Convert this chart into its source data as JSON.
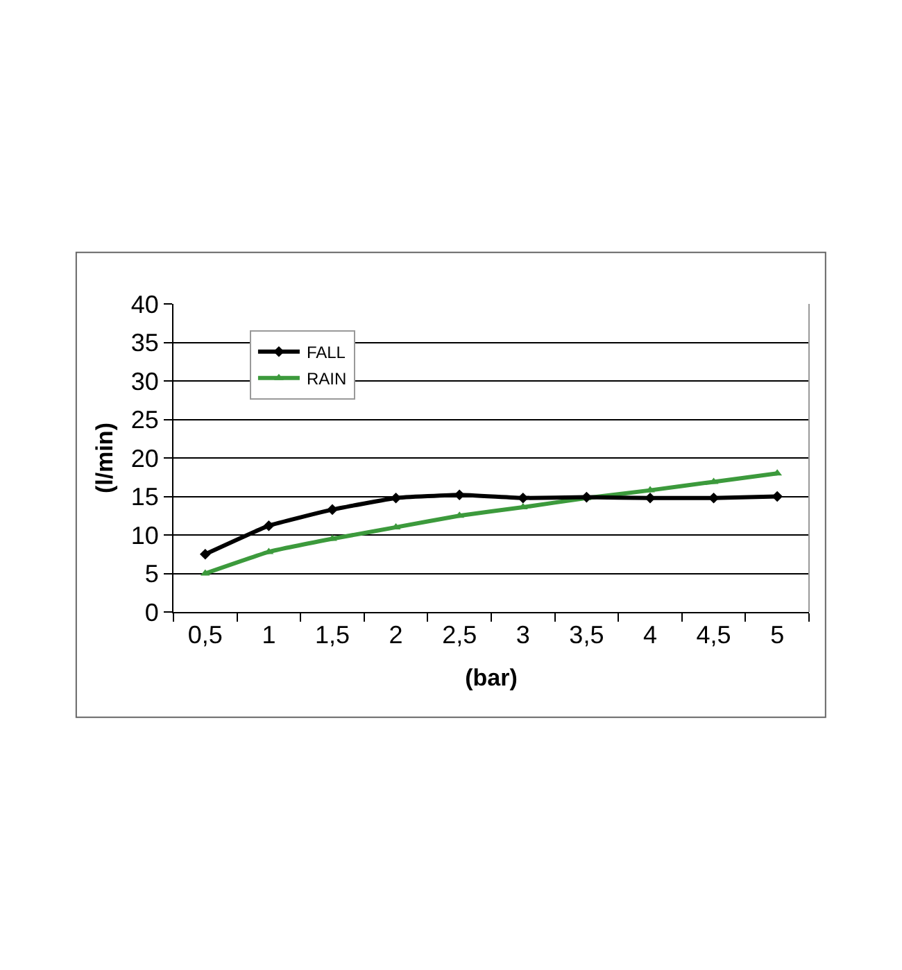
{
  "chart_data": {
    "type": "line",
    "xlabel": "(bar)",
    "ylabel": "(l/min)",
    "categories": [
      "0,5",
      "1",
      "1,5",
      "2",
      "2,5",
      "3",
      "3,5",
      "4",
      "4,5",
      "5"
    ],
    "series": [
      {
        "name": "FALL",
        "color": "#000000",
        "marker": "diamond",
        "values": [
          7.5,
          11.2,
          13.3,
          14.8,
          15.2,
          14.8,
          14.9,
          14.8,
          14.8,
          15.0
        ]
      },
      {
        "name": "RAIN",
        "color": "#3c9a3c",
        "marker": "triangle",
        "values": [
          5.0,
          7.8,
          9.5,
          11.0,
          12.5,
          13.6,
          14.8,
          15.8,
          16.9,
          18.0
        ]
      }
    ],
    "ylim": [
      0,
      40
    ],
    "yticks": [
      0,
      5,
      10,
      15,
      20,
      25,
      30,
      35,
      40
    ],
    "grid": "y",
    "legend": "top left",
    "line_style": "solid"
  }
}
